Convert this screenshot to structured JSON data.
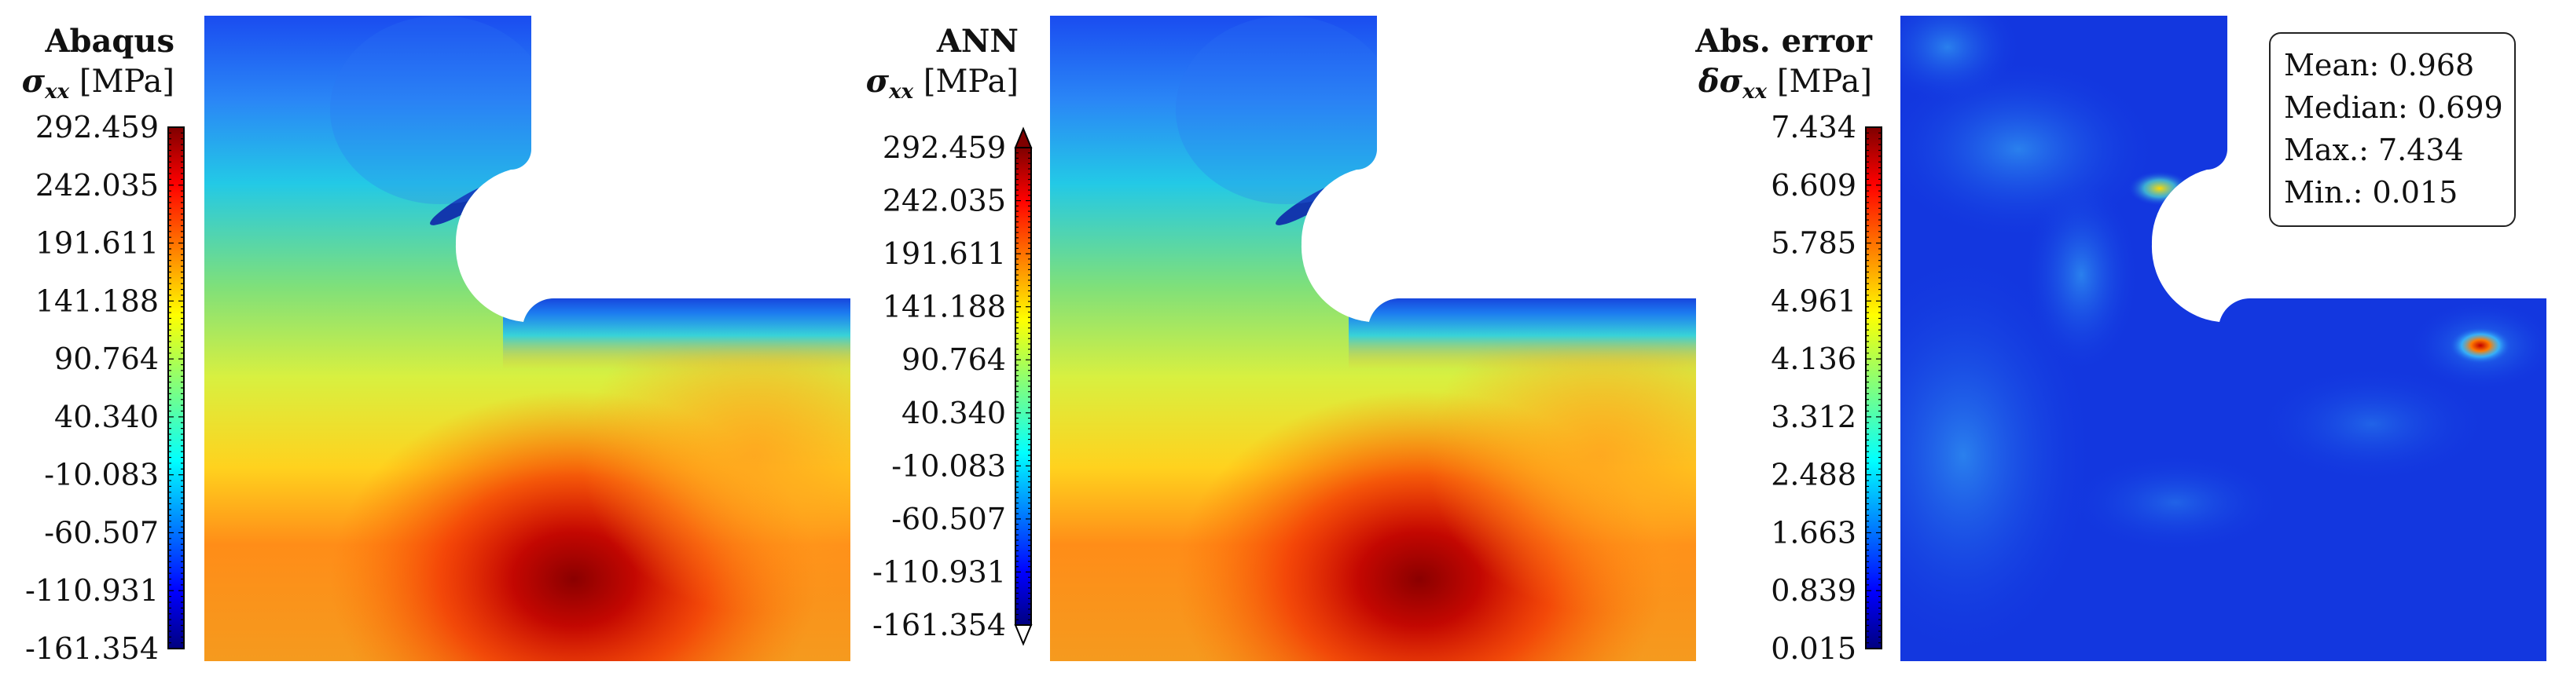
{
  "panels": [
    {
      "title": "Abaqus",
      "quantity_symbol": "σ",
      "quantity_subscript": "xx",
      "unit": "[MPa]",
      "colorbar_ticks": [
        "292.459",
        "242.035",
        "191.611",
        "141.188",
        "90.764",
        "40.340",
        "-10.083",
        "-60.507",
        "-110.931",
        "-161.354"
      ],
      "colormap": "jet",
      "extended_arrows": false
    },
    {
      "title": "ANN",
      "quantity_symbol": "σ",
      "quantity_subscript": "xx",
      "unit": "[MPa]",
      "colorbar_ticks": [
        "292.459",
        "242.035",
        "191.611",
        "141.188",
        "90.764",
        "40.340",
        "-10.083",
        "-60.507",
        "-110.931",
        "-161.354"
      ],
      "colormap": "jet",
      "extended_arrows": true
    },
    {
      "title": "Abs. error",
      "quantity_symbol": "δσ",
      "quantity_subscript": "xx",
      "unit": "[MPa]",
      "colorbar_ticks": [
        "7.434",
        "6.609",
        "5.785",
        "4.961",
        "4.136",
        "3.312",
        "2.488",
        "1.663",
        "0.839",
        "0.015"
      ],
      "colormap": "jet",
      "extended_arrows": false
    }
  ],
  "error_stats": {
    "mean": "Mean: 0.968",
    "median": "Median: 0.699",
    "max": "Max.: 7.434",
    "min": "Min.: 0.015"
  },
  "colors": {
    "jet_top": "#7f0000",
    "jet_mid": "#ffff00",
    "jet_bottom": "#00007f"
  }
}
